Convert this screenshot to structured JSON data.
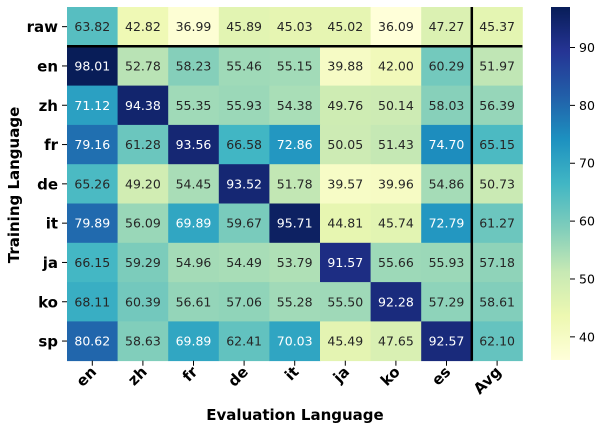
{
  "chart_data": {
    "type": "heatmap",
    "title": "",
    "xlabel": "Evaluation Language",
    "ylabel": "Training Language",
    "x_categories": [
      "en",
      "zh",
      "fr",
      "de",
      "it",
      "ja",
      "ko",
      "es",
      "Avg"
    ],
    "y_categories": [
      "raw",
      "en",
      "zh",
      "fr",
      "de",
      "it",
      "ja",
      "ko",
      "sp"
    ],
    "values": [
      [
        63.82,
        42.82,
        36.99,
        45.89,
        45.03,
        45.02,
        36.09,
        47.27,
        45.37
      ],
      [
        98.01,
        52.78,
        58.23,
        55.46,
        55.15,
        39.88,
        42.0,
        60.29,
        51.97
      ],
      [
        71.12,
        94.38,
        55.35,
        55.93,
        54.38,
        49.76,
        50.14,
        58.03,
        56.39
      ],
      [
        79.16,
        61.28,
        93.56,
        66.58,
        72.86,
        50.05,
        51.43,
        74.7,
        65.15
      ],
      [
        65.26,
        49.2,
        54.45,
        93.52,
        51.78,
        39.57,
        39.96,
        54.86,
        50.73
      ],
      [
        79.89,
        56.09,
        69.89,
        59.67,
        95.71,
        44.81,
        45.74,
        72.79,
        61.27
      ],
      [
        66.15,
        59.29,
        54.96,
        54.49,
        53.79,
        91.57,
        55.66,
        55.93,
        57.18
      ],
      [
        68.11,
        60.39,
        56.61,
        57.06,
        55.28,
        55.5,
        92.28,
        57.29,
        58.61
      ],
      [
        80.62,
        58.63,
        69.89,
        62.41,
        70.03,
        45.49,
        47.65,
        92.57,
        62.1
      ]
    ],
    "colormap": "YlGnBu",
    "color_range": [
      36,
      97
    ],
    "colorbar_ticks": [
      40,
      50,
      60,
      70,
      80,
      90
    ],
    "separators": [
      "after row raw",
      "before column Avg"
    ],
    "colorbar_stops": [
      "#ffffd9",
      "#edf8b1",
      "#c7e9b4",
      "#7fcdbb",
      "#41b6c4",
      "#1d91c0",
      "#225ea8",
      "#253494",
      "#081d58"
    ]
  }
}
